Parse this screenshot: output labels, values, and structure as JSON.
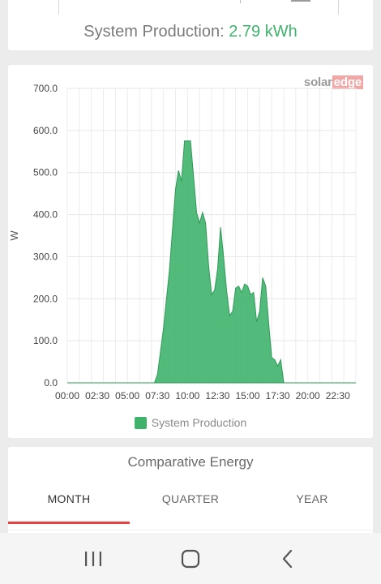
{
  "summary": {
    "label": "System Production:",
    "value": "2.79 kWh"
  },
  "brand": {
    "solar": "solar",
    "edge": "edge"
  },
  "chart_data": {
    "type": "area",
    "ylabel": "W",
    "xlabel": "",
    "ylim": [
      0,
      700
    ],
    "yticks": [
      "0.0",
      "100.0",
      "200.0",
      "300.0",
      "400.0",
      "500.0",
      "600.0",
      "700.0"
    ],
    "xticks": [
      "00:00",
      "02:30",
      "05:00",
      "07:30",
      "10:00",
      "12:30",
      "15:00",
      "17:30",
      "20:00",
      "22:30"
    ],
    "grid": true,
    "series": [
      {
        "name": "System Production",
        "color": "#3fb36c",
        "points": [
          [
            "00:00",
            0
          ],
          [
            "07:15",
            0
          ],
          [
            "07:30",
            20
          ],
          [
            "08:00",
            130
          ],
          [
            "08:30",
            270
          ],
          [
            "09:00",
            460
          ],
          [
            "09:15",
            505
          ],
          [
            "09:30",
            480
          ],
          [
            "09:45",
            575
          ],
          [
            "10:15",
            575
          ],
          [
            "10:30",
            490
          ],
          [
            "10:45",
            405
          ],
          [
            "11:00",
            380
          ],
          [
            "11:15",
            405
          ],
          [
            "11:30",
            380
          ],
          [
            "11:45",
            280
          ],
          [
            "12:00",
            210
          ],
          [
            "12:15",
            220
          ],
          [
            "12:30",
            270
          ],
          [
            "12:45",
            370
          ],
          [
            "13:00",
            300
          ],
          [
            "13:15",
            220
          ],
          [
            "13:30",
            160
          ],
          [
            "13:45",
            170
          ],
          [
            "14:00",
            225
          ],
          [
            "14:15",
            230
          ],
          [
            "14:30",
            215
          ],
          [
            "14:45",
            235
          ],
          [
            "15:00",
            230
          ],
          [
            "15:15",
            210
          ],
          [
            "15:30",
            215
          ],
          [
            "15:45",
            145
          ],
          [
            "16:00",
            170
          ],
          [
            "16:15",
            250
          ],
          [
            "16:30",
            230
          ],
          [
            "16:45",
            140
          ],
          [
            "17:00",
            60
          ],
          [
            "17:15",
            55
          ],
          [
            "17:30",
            40
          ],
          [
            "17:45",
            55
          ],
          [
            "18:00",
            0
          ],
          [
            "24:00",
            0
          ]
        ]
      }
    ],
    "legend": "bottom-center"
  },
  "comparative": {
    "title": "Comparative Energy",
    "tabs": [
      "MONTH",
      "QUARTER",
      "YEAR"
    ],
    "active_tab": "MONTH"
  },
  "navbar": {
    "icons": [
      "recent-apps-icon",
      "home-icon",
      "back-icon"
    ]
  },
  "colors": {
    "accent": "#3fb36c",
    "tab_underline": "#e54242"
  }
}
